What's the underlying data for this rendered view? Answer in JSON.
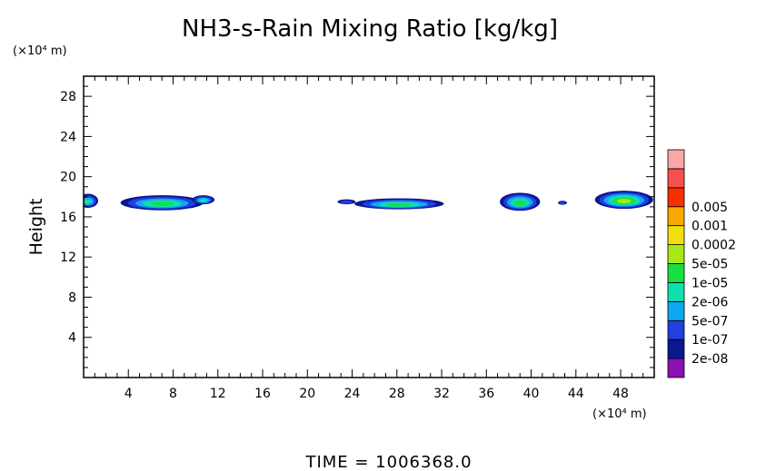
{
  "chart_data": {
    "type": "heatmap",
    "title": "NH3-s-Rain Mixing Ratio [kg/kg]",
    "xlabel": "",
    "ylabel": "Height",
    "x_unit": "(×10⁴ m)",
    "y_unit": "(×10⁴ m)",
    "xlim": [
      0,
      51
    ],
    "ylim": [
      0,
      30
    ],
    "x_ticks": [
      4,
      8,
      12,
      16,
      20,
      24,
      28,
      32,
      36,
      40,
      44,
      48
    ],
    "y_ticks": [
      4,
      8,
      12,
      16,
      20,
      24,
      28
    ],
    "legend": {
      "position": "right",
      "levels": [
        "2e-08",
        "1e-07",
        "5e-07",
        "2e-06",
        "1e-05",
        "5e-05",
        "0.0002",
        "0.001",
        "0.005"
      ],
      "colors": [
        "#8a10b0",
        "#0a1890",
        "#2040e0",
        "#10a8f0",
        "#10e0b0",
        "#18e040",
        "#a8e818",
        "#f0e010",
        "#f8a800",
        "#f83000",
        "#f85050",
        "#f8a8a8"
      ]
    },
    "blobs": [
      {
        "x": 0.4,
        "y": 17.6,
        "rx": 0.9,
        "ry": 0.7,
        "level": 4
      },
      {
        "x": 7.0,
        "y": 17.4,
        "rx": 3.7,
        "ry": 0.75,
        "level": 5
      },
      {
        "x": 10.7,
        "y": 17.7,
        "rx": 1.0,
        "ry": 0.45,
        "level": 4
      },
      {
        "x": 23.5,
        "y": 17.5,
        "rx": 0.8,
        "ry": 0.25,
        "level": 2
      },
      {
        "x": 28.2,
        "y": 17.3,
        "rx": 4.0,
        "ry": 0.55,
        "level": 5
      },
      {
        "x": 39.0,
        "y": 17.5,
        "rx": 1.8,
        "ry": 0.9,
        "level": 5
      },
      {
        "x": 42.8,
        "y": 17.4,
        "rx": 0.4,
        "ry": 0.2,
        "level": 2
      },
      {
        "x": 48.3,
        "y": 17.7,
        "rx": 2.6,
        "ry": 0.9,
        "level": 6
      }
    ]
  },
  "footer": {
    "time_label": "TIME = 1006368.0"
  }
}
